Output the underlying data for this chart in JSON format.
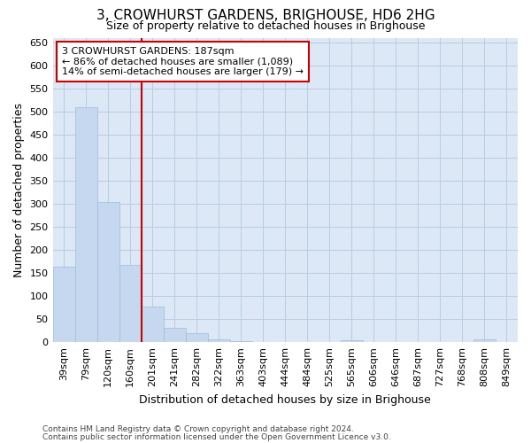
{
  "title": "3, CROWHURST GARDENS, BRIGHOUSE, HD6 2HG",
  "subtitle": "Size of property relative to detached houses in Brighouse",
  "xlabel": "Distribution of detached houses by size in Brighouse",
  "ylabel": "Number of detached properties",
  "categories": [
    "39sqm",
    "79sqm",
    "120sqm",
    "160sqm",
    "201sqm",
    "241sqm",
    "282sqm",
    "322sqm",
    "363sqm",
    "403sqm",
    "444sqm",
    "484sqm",
    "525sqm",
    "565sqm",
    "606sqm",
    "646sqm",
    "687sqm",
    "727sqm",
    "768sqm",
    "808sqm",
    "849sqm"
  ],
  "values": [
    163,
    509,
    303,
    168,
    77,
    32,
    20,
    6,
    2,
    1,
    1,
    1,
    1,
    4,
    0,
    0,
    0,
    0,
    0,
    7,
    0
  ],
  "bar_color": "#c5d8ef",
  "bar_edge_color": "#a0bcd8",
  "red_line_index": 4,
  "annotation_line1": "3 CROWHURST GARDENS: 187sqm",
  "annotation_line2": "← 86% of detached houses are smaller (1,089)",
  "annotation_line3": "14% of semi-detached houses are larger (179) →",
  "annotation_box_color": "#ffffff",
  "annotation_box_edge_color": "#cc0000",
  "red_line_color": "#cc0000",
  "grid_color": "#b8cce0",
  "background_color": "#dce8f5",
  "ylim": [
    0,
    660
  ],
  "yticks": [
    0,
    50,
    100,
    150,
    200,
    250,
    300,
    350,
    400,
    450,
    500,
    550,
    600,
    650
  ],
  "title_fontsize": 11,
  "subtitle_fontsize": 9,
  "ylabel_fontsize": 9,
  "xlabel_fontsize": 9,
  "tick_fontsize": 8,
  "xtick_fontsize": 8,
  "footer_line1": "Contains HM Land Registry data © Crown copyright and database right 2024.",
  "footer_line2": "Contains public sector information licensed under the Open Government Licence v3.0."
}
